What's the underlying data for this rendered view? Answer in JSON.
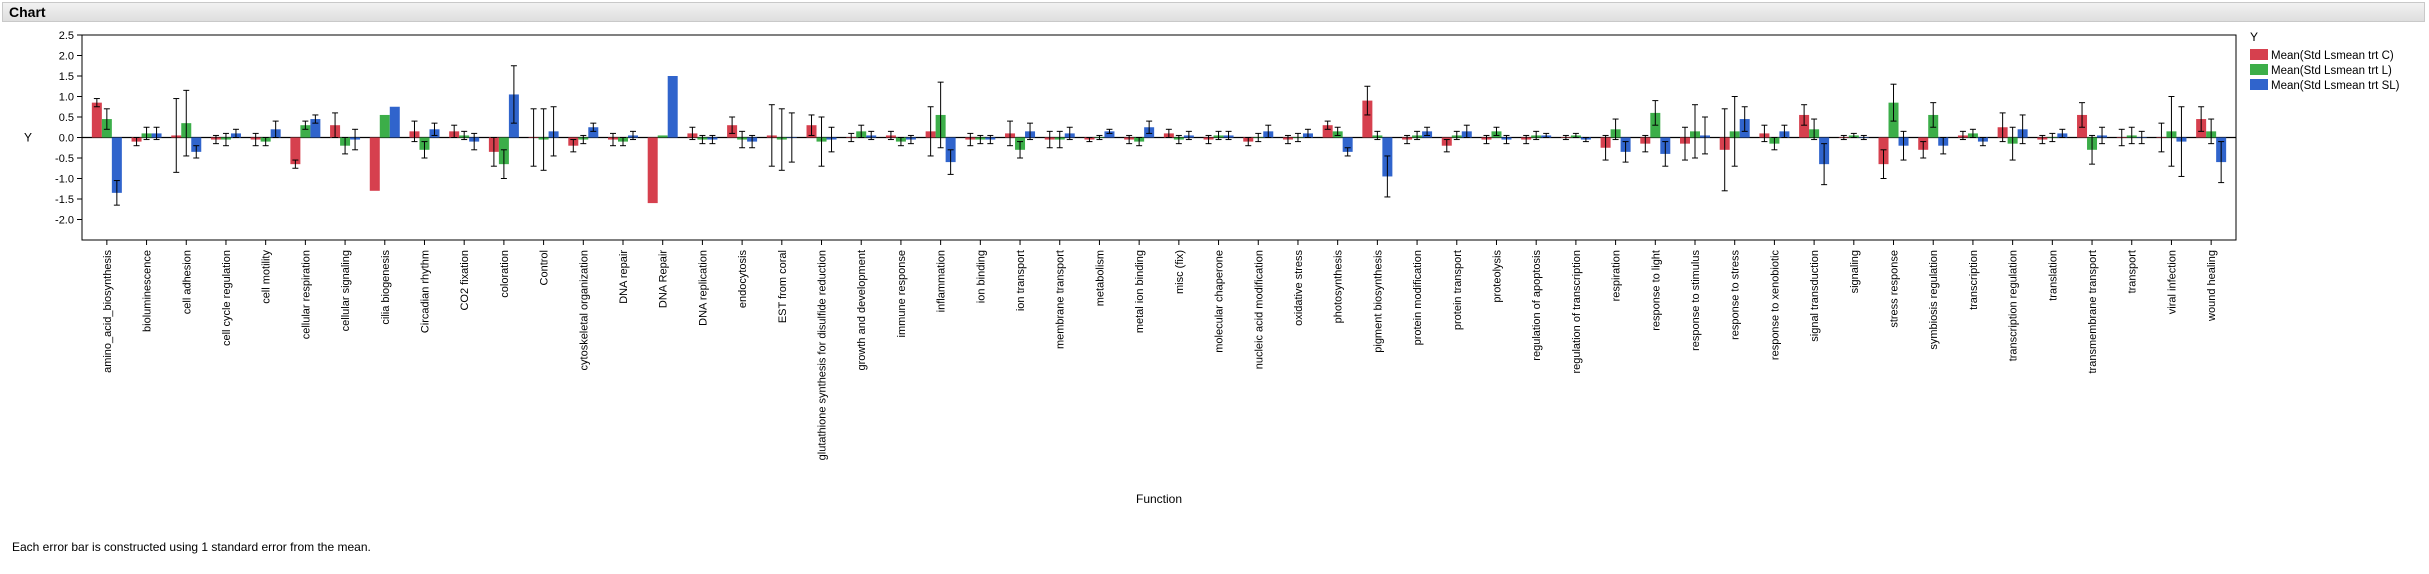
{
  "window": {
    "title": "Chart"
  },
  "footnote": "Each error bar is constructed using 1 standard error from the mean.",
  "chart_data": {
    "type": "bar",
    "title": "",
    "xlabel": "Function",
    "ylabel": "Y",
    "ylim": [
      -2.5,
      2.5
    ],
    "yticks": [
      "2.5",
      "2.0",
      "1.5",
      "1.0",
      "0.5",
      "0.0",
      "-0.5",
      "-1.0",
      "-1.5",
      "-2.0"
    ],
    "ytick_values": [
      2.5,
      2.0,
      1.5,
      1.0,
      0.5,
      0.0,
      -0.5,
      -1.0,
      -1.5,
      -2.0
    ],
    "grid": false,
    "legend": {
      "title": "Y",
      "position": "right"
    },
    "error_bars": "1 standard error",
    "categories": [
      "amino_acid_biosynthesis",
      "bioluminescence",
      "cell adhesion",
      "cell cycle regulation",
      "cell motility",
      "cellular respiration",
      "cellular signaling",
      "cilia biogenesis",
      "Circadian rhythm",
      "CO2 fixation",
      "coloration",
      "Control",
      "cytoskeletal organization",
      "DNA repair",
      "DNA Repair",
      "DNA replication",
      "endocytosis",
      "EST from coral",
      "glutathione synthesis for disulfide reduction",
      "growth and development",
      "immune response",
      "inflammation",
      "ion binding",
      "ion transport",
      "membrane transport",
      "metabolism",
      "metal ion binding",
      "misc (fix)",
      "molecular chaperone",
      "nucleic acid modification",
      "oxidative stress",
      "photosynthesis",
      "pigment biosynthesis",
      "protein modification",
      "protein transport",
      "proteolysis",
      "regulation of apoptosis",
      "regulation of transcription",
      "respiration",
      "response to light",
      "response to stimulus",
      "response to stress",
      "response to xenobiotic",
      "signal transduction",
      "signaling",
      "stress response",
      "symbiosis regulation",
      "transcription",
      "transcription regulation",
      "translation",
      "transmembrane transport",
      "transport",
      "viral infection",
      "wound healing"
    ],
    "series": [
      {
        "name": "Mean(Std Lsmean trt C)",
        "color": "#d6404e",
        "values": [
          0.85,
          -0.1,
          0.05,
          -0.05,
          -0.05,
          -0.65,
          0.3,
          -1.3,
          0.15,
          0.15,
          -0.35,
          0.0,
          -0.2,
          -0.05,
          -1.6,
          0.1,
          0.3,
          0.05,
          0.3,
          0.0,
          0.05,
          0.15,
          -0.05,
          0.1,
          -0.05,
          -0.05,
          -0.05,
          0.1,
          -0.05,
          -0.1,
          -0.05,
          0.3,
          0.9,
          -0.05,
          -0.2,
          -0.05,
          -0.05,
          0.0,
          -0.25,
          -0.15,
          -0.15,
          -0.3,
          0.1,
          0.55,
          0.0,
          -0.65,
          -0.3,
          0.05,
          0.25,
          -0.05,
          0.55,
          0.0,
          0.0,
          0.45
        ],
        "errors": [
          0.1,
          0.1,
          0.9,
          0.1,
          0.15,
          0.1,
          0.3,
          0.0,
          0.25,
          0.15,
          0.35,
          0.7,
          0.15,
          0.15,
          0.0,
          0.15,
          0.2,
          0.75,
          0.25,
          0.1,
          0.1,
          0.6,
          0.15,
          0.3,
          0.2,
          0.05,
          0.1,
          0.1,
          0.1,
          0.1,
          0.1,
          0.1,
          0.35,
          0.1,
          0.15,
          0.1,
          0.1,
          0.05,
          0.3,
          0.2,
          0.4,
          1.0,
          0.2,
          0.25,
          0.05,
          0.35,
          0.2,
          0.1,
          0.35,
          0.1,
          0.3,
          0.2,
          0.35,
          0.3
        ]
      },
      {
        "name": "Mean(Std Lsmean trt L)",
        "color": "#3cae49",
        "values": [
          0.45,
          0.1,
          0.35,
          -0.05,
          -0.1,
          0.3,
          -0.2,
          0.55,
          -0.3,
          0.05,
          -0.65,
          -0.05,
          -0.05,
          -0.1,
          0.05,
          -0.05,
          -0.05,
          -0.05,
          -0.1,
          0.15,
          -0.1,
          0.55,
          -0.05,
          -0.3,
          -0.05,
          0.0,
          -0.1,
          -0.05,
          0.05,
          0.0,
          0.0,
          0.15,
          0.05,
          0.05,
          0.05,
          0.15,
          0.05,
          0.05,
          0.2,
          0.6,
          0.15,
          0.15,
          -0.15,
          0.2,
          0.05,
          0.85,
          0.55,
          0.1,
          -0.15,
          0.0,
          -0.3,
          0.05,
          0.15,
          0.15
        ],
        "errors": [
          0.25,
          0.15,
          0.8,
          0.15,
          0.1,
          0.1,
          0.2,
          0.0,
          0.2,
          0.1,
          0.35,
          0.75,
          0.1,
          0.1,
          0.0,
          0.1,
          0.2,
          0.75,
          0.6,
          0.15,
          0.1,
          0.8,
          0.1,
          0.2,
          0.2,
          0.05,
          0.1,
          0.1,
          0.1,
          0.1,
          0.1,
          0.1,
          0.1,
          0.1,
          0.1,
          0.1,
          0.1,
          0.05,
          0.25,
          0.3,
          0.65,
          0.85,
          0.15,
          0.25,
          0.05,
          0.45,
          0.3,
          0.1,
          0.4,
          0.1,
          0.35,
          0.2,
          0.85,
          0.3
        ]
      },
      {
        "name": "Mean(Std Lsmean trt SL)",
        "color": "#3064cc",
        "values": [
          -1.35,
          0.1,
          -0.35,
          0.1,
          0.2,
          0.45,
          -0.05,
          0.75,
          0.2,
          -0.1,
          1.05,
          0.15,
          0.25,
          0.05,
          1.5,
          -0.05,
          -0.1,
          0.0,
          -0.05,
          0.05,
          -0.05,
          -0.6,
          -0.05,
          0.15,
          0.1,
          0.15,
          0.25,
          0.05,
          0.05,
          0.15,
          0.1,
          -0.35,
          -0.95,
          0.15,
          0.15,
          -0.05,
          0.05,
          -0.05,
          -0.35,
          -0.4,
          0.05,
          0.45,
          0.15,
          -0.65,
          0.0,
          -0.2,
          -0.2,
          -0.1,
          0.2,
          0.1,
          0.05,
          0.0,
          -0.1,
          -0.6
        ],
        "errors": [
          0.3,
          0.15,
          0.15,
          0.1,
          0.2,
          0.1,
          0.25,
          0.0,
          0.15,
          0.2,
          0.7,
          0.6,
          0.1,
          0.1,
          0.0,
          0.1,
          0.15,
          0.6,
          0.3,
          0.1,
          0.1,
          0.3,
          0.1,
          0.2,
          0.15,
          0.05,
          0.15,
          0.1,
          0.1,
          0.15,
          0.1,
          0.1,
          0.5,
          0.1,
          0.15,
          0.1,
          0.05,
          0.05,
          0.25,
          0.3,
          0.45,
          0.3,
          0.15,
          0.5,
          0.05,
          0.35,
          0.2,
          0.1,
          0.35,
          0.1,
          0.2,
          0.15,
          0.85,
          0.5
        ]
      }
    ]
  }
}
